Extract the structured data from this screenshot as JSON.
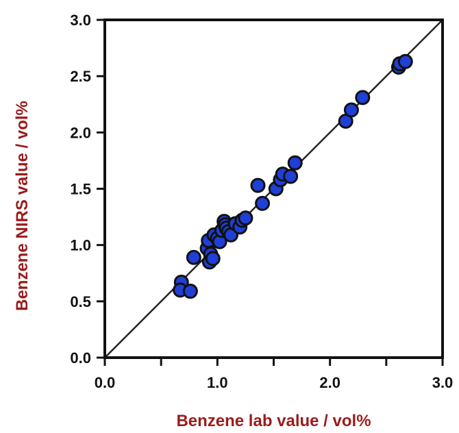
{
  "chart_data": {
    "type": "scatter",
    "xlabel": "Benzene lab value / vol%",
    "ylabel": "Benzene NIRS value / vol%",
    "xlim": [
      0.0,
      3.0
    ],
    "ylim": [
      0.0,
      3.0
    ],
    "x_ticks": [
      "0.0",
      "1.0",
      "2.0",
      "3.0"
    ],
    "y_ticks": [
      "0.0",
      "0.5",
      "1.0",
      "1.5",
      "2.0",
      "2.5",
      "3.0"
    ],
    "grid": false,
    "legend": "none",
    "reference_line": "y = x",
    "colors": {
      "marker_fill": "#1f3fd6",
      "marker_edge": "#111111",
      "axis_title": "#9a1c1c",
      "line": "#222222"
    },
    "points": [
      {
        "x": 0.68,
        "y": 0.67
      },
      {
        "x": 0.67,
        "y": 0.6
      },
      {
        "x": 0.76,
        "y": 0.59
      },
      {
        "x": 0.79,
        "y": 0.89
      },
      {
        "x": 0.91,
        "y": 0.97
      },
      {
        "x": 0.92,
        "y": 1.04
      },
      {
        "x": 0.93,
        "y": 0.85
      },
      {
        "x": 0.94,
        "y": 0.92
      },
      {
        "x": 0.96,
        "y": 0.88
      },
      {
        "x": 0.97,
        "y": 1.09
      },
      {
        "x": 1.0,
        "y": 1.06
      },
      {
        "x": 1.02,
        "y": 1.03
      },
      {
        "x": 1.04,
        "y": 1.13
      },
      {
        "x": 1.06,
        "y": 1.21
      },
      {
        "x": 1.07,
        "y": 1.18
      },
      {
        "x": 1.08,
        "y": 1.15
      },
      {
        "x": 1.1,
        "y": 1.12
      },
      {
        "x": 1.12,
        "y": 1.09
      },
      {
        "x": 1.16,
        "y": 1.19
      },
      {
        "x": 1.2,
        "y": 1.16
      },
      {
        "x": 1.22,
        "y": 1.22
      },
      {
        "x": 1.25,
        "y": 1.24
      },
      {
        "x": 1.36,
        "y": 1.53
      },
      {
        "x": 1.4,
        "y": 1.37
      },
      {
        "x": 1.52,
        "y": 1.5
      },
      {
        "x": 1.56,
        "y": 1.58
      },
      {
        "x": 1.58,
        "y": 1.63
      },
      {
        "x": 1.65,
        "y": 1.61
      },
      {
        "x": 1.69,
        "y": 1.73
      },
      {
        "x": 2.14,
        "y": 2.1
      },
      {
        "x": 2.19,
        "y": 2.2
      },
      {
        "x": 2.29,
        "y": 2.31
      },
      {
        "x": 2.61,
        "y": 2.58
      },
      {
        "x": 2.62,
        "y": 2.61
      },
      {
        "x": 2.67,
        "y": 2.63
      }
    ]
  }
}
